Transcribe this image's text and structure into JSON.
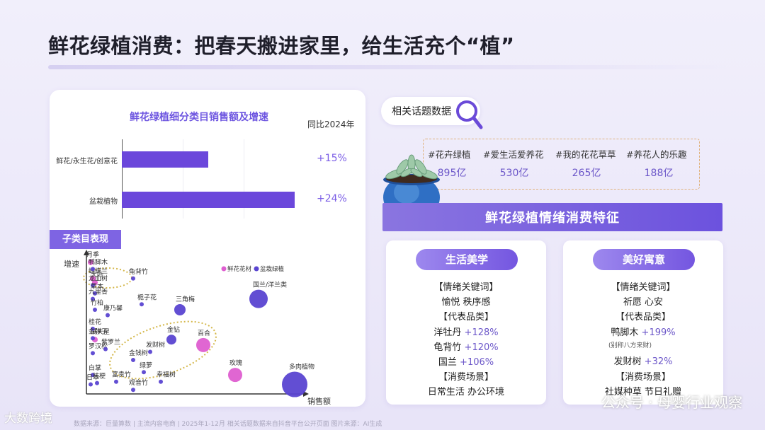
{
  "title": "鲜花绿植消费：把春天搬进家里，给生活充个“植”",
  "left_panel": {
    "chart_title": "鲜花绿植细分类目销售额及增速",
    "yoy_label": "同比2024年",
    "subcategory_tag": "子类目表现"
  },
  "chart_data": [
    {
      "type": "bar",
      "orientation": "horizontal",
      "title": "鲜花绿植细分类目销售额及增速",
      "categories": [
        "鲜花/永生花/创意花",
        "盆栽植物"
      ],
      "values": [
        0.5,
        1.0
      ],
      "growth": [
        "+15%",
        "+24%"
      ],
      "growth_header": "同比2024年",
      "bar_color": "#6b47db"
    },
    {
      "type": "scatter",
      "xlabel": "销售额",
      "ylabel": "增速",
      "legend_position": "top-right",
      "series": [
        {
          "name": "鲜花花材",
          "color": "#de5ed0",
          "points": [
            {
              "label": "月季",
              "x": 0.02,
              "y": 0.97,
              "size": 4
            },
            {
              "label": "蝴蝶兰",
              "x": 0.03,
              "y": 0.85,
              "size": 4
            },
            {
              "label": "大叶",
              "x": 0.04,
              "y": 0.82,
              "size": 4
            },
            {
              "label": "满天星",
              "x": 0.04,
              "y": 0.4,
              "size": 4
            },
            {
              "label": "百合",
              "x": 0.55,
              "y": 0.36,
              "size": 10
            },
            {
              "label": "玫瑰",
              "x": 0.7,
              "y": 0.14,
              "size": 10
            }
          ]
        },
        {
          "name": "盆栽绿植",
          "color": "#5a45d1",
          "points": [
            {
              "label": "鸭脚木",
              "x": 0.03,
              "y": 0.92,
              "size": 3
            },
            {
              "label": "龙血树",
              "x": 0.03,
              "y": 0.8,
              "size": 3
            },
            {
              "label": "草本",
              "x": 0.04,
              "y": 0.74,
              "size": 3
            },
            {
              "label": "九里香",
              "x": 0.03,
              "y": 0.7,
              "size": 3
            },
            {
              "label": "竹柏",
              "x": 0.04,
              "y": 0.62,
              "size": 3
            },
            {
              "label": "康乃馨",
              "x": 0.1,
              "y": 0.58,
              "size": 3
            },
            {
              "label": "桂花",
              "x": 0.03,
              "y": 0.48,
              "size": 3
            },
            {
              "label": "金弹子",
              "x": 0.03,
              "y": 0.41,
              "size": 3
            },
            {
              "label": "罗汉松",
              "x": 0.03,
              "y": 0.3,
              "size": 3
            },
            {
              "label": "紫罗兰",
              "x": 0.09,
              "y": 0.33,
              "size": 3
            },
            {
              "label": "白掌",
              "x": 0.03,
              "y": 0.14,
              "size": 3
            },
            {
              "label": "桔梗",
              "x": 0.05,
              "y": 0.08,
              "size": 3
            },
            {
              "label": "日本",
              "x": 0.02,
              "y": 0.07,
              "size": 3
            },
            {
              "label": "龟背竹",
              "x": 0.22,
              "y": 0.85,
              "size": 3
            },
            {
              "label": "栀子花",
              "x": 0.26,
              "y": 0.66,
              "size": 3
            },
            {
              "label": "三角梅",
              "x": 0.44,
              "y": 0.62,
              "size": 8
            },
            {
              "label": "国兰/洋兰类",
              "x": 0.81,
              "y": 0.7,
              "size": 13
            },
            {
              "label": "金钻",
              "x": 0.4,
              "y": 0.4,
              "size": 7
            },
            {
              "label": "发财树",
              "x": 0.3,
              "y": 0.31,
              "size": 3
            },
            {
              "label": "金钱树",
              "x": 0.22,
              "y": 0.25,
              "size": 3
            },
            {
              "label": "绿萝",
              "x": 0.27,
              "y": 0.16,
              "size": 3
            },
            {
              "label": "幸福树",
              "x": 0.35,
              "y": 0.09,
              "size": 3
            },
            {
              "label": "富贵竹",
              "x": 0.14,
              "y": 0.09,
              "size": 3
            },
            {
              "label": "观音竹",
              "x": 0.22,
              "y": 0.03,
              "size": 3
            },
            {
              "label": "多肉植物",
              "x": 0.98,
              "y": 0.07,
              "size": 18
            }
          ]
        }
      ]
    }
  ],
  "topics": {
    "header": "相关话题数据",
    "items": [
      {
        "tag": "#花卉绿植",
        "count": "895亿"
      },
      {
        "tag": "#爱生活爱养花",
        "count": "530亿"
      },
      {
        "tag": "#我的花花草草",
        "count": "265亿"
      },
      {
        "tag": "#养花人的乐趣",
        "count": "188亿"
      }
    ]
  },
  "banner": "鲜花绿植情绪消费特征",
  "features": [
    {
      "title": "生活美学",
      "lines": [
        "【情绪关键词】",
        "愉悦 秩序感",
        "【代表品类】"
      ],
      "products": [
        {
          "name": "洋牡丹",
          "growth": "+128%"
        },
        {
          "name": "龟背竹",
          "growth": "+120%"
        },
        {
          "name": "国兰",
          "growth": "+106%"
        }
      ],
      "scene_header": "【消费场景】",
      "scene": "日常生活 办公环境"
    },
    {
      "title": "美好寓意",
      "lines": [
        "【情绪关键词】",
        "祈愿 心安",
        "【代表品类】"
      ],
      "products": [
        {
          "name": "鸭脚木",
          "growth": "+199%",
          "note": "(别称八方来财)"
        },
        {
          "name": "发财树",
          "growth": "+32%"
        }
      ],
      "scene_header": "【消费场景】",
      "scene": "社媒种草 节日礼赠"
    }
  ],
  "footer": {
    "note": "数据来源：巨量算数 | 主流内容电商 | 2025年1-12月     相关话题数据来自抖音平台公开页面  图片来源：AI生成",
    "watermark_left": "大数跨境",
    "watermark_right": "公众号 · 母婴行业观察"
  }
}
